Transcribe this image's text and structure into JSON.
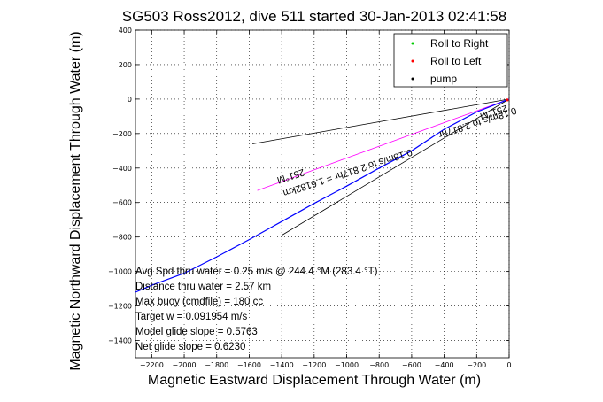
{
  "chart_data": {
    "type": "line",
    "title": "SG503 Ross2012, dive 511 started 30-Jan-2013 02:41:58",
    "xlabel": "Magnetic Eastward Displacement Through Water (m)",
    "ylabel": "Magnetic Northward Displacement Through Water (m)",
    "xlim": [
      -2300,
      0
    ],
    "ylim": [
      -1500,
      400
    ],
    "xticks": [
      -2200,
      -2000,
      -1800,
      -1600,
      -1400,
      -1200,
      -1000,
      -800,
      -600,
      -400,
      -200,
      0
    ],
    "yticks": [
      400,
      200,
      0,
      -200,
      -400,
      -600,
      -800,
      -1000,
      -1200,
      -1400
    ],
    "grid": true,
    "legend_position": "top-right",
    "legend": [
      {
        "label": "Roll to Right",
        "color": "#00cc00",
        "marker": "."
      },
      {
        "label": "Roll to Left",
        "color": "#ff0000",
        "marker": "."
      },
      {
        "label": "pump",
        "color": "#000000",
        "marker": "."
      }
    ],
    "series": [
      {
        "color": "#0000ff",
        "x": [
          0,
          -200,
          -400,
          -600,
          -800,
          -1000,
          -1200,
          -1400,
          -1600,
          -1800,
          -2000,
          -2200,
          -2300
        ],
        "y": [
          0,
          -75,
          -175,
          -300,
          -400,
          -505,
          -605,
          -710,
          -815,
          -915,
          -1010,
          -1080,
          -1120
        ]
      }
    ],
    "lines": [
      {
        "name": "heading-line",
        "color": "#ff00ff",
        "x": [
          0,
          -1550
        ],
        "y": [
          0,
          -530
        ]
      },
      {
        "name": "bound-line-upper",
        "color": "#000000",
        "x": [
          0,
          -1580
        ],
        "y": [
          0,
          -260
        ]
      },
      {
        "name": "bound-line-lower",
        "color": "#000000",
        "x": [
          0,
          -1400
        ],
        "y": [
          0,
          -790
        ]
      }
    ],
    "annotations": [
      "Avg Spd thru water = 0.25 m/s @ 244.4 °M (283.4 °T)",
      "Distance thru water = 2.57 km",
      "Max buoy (cmdfile) = 180 cc",
      "Target w = 0.091954 m/s",
      "Model glide slope = 0.5763",
      "Net glide slope = 0.6230"
    ],
    "rotated_labels": [
      {
        "text": "251°M",
        "x": -1350,
        "y": -430
      },
      {
        "text": "0.18m/s to 2.817hr = 1.6182km",
        "x": -1000,
        "y": -410
      },
      {
        "text": "251°M",
        "x": -100,
        "y": -60
      },
      {
        "text": "0.18m/s to 2.817hr",
        "x": -200,
        "y": -120
      }
    ]
  }
}
